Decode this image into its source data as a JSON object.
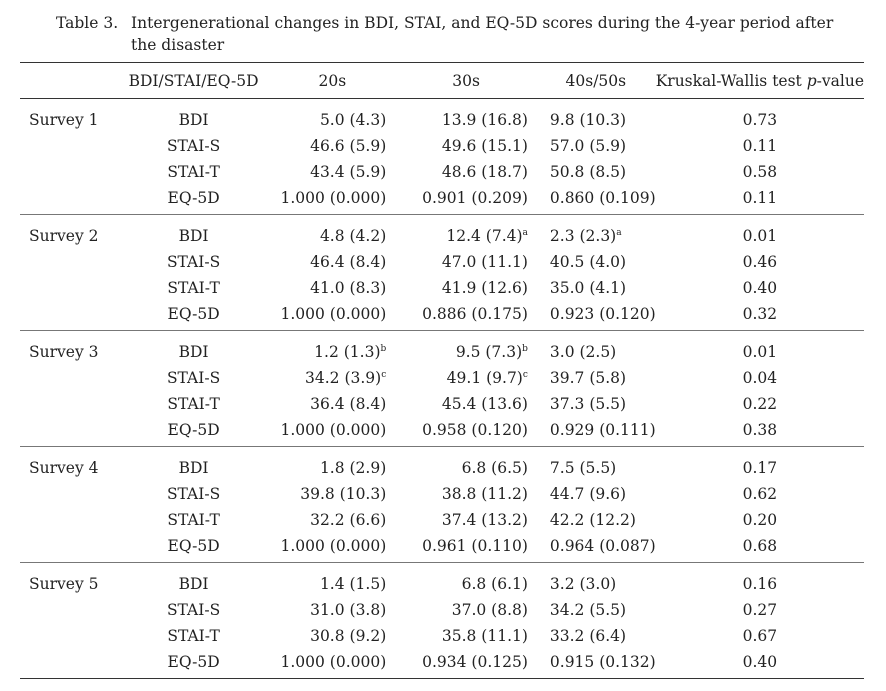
{
  "caption": {
    "label": "Table 3.",
    "text": "Intergenerational changes in BDI, STAI, and EQ-5D scores during the 4-year period after the disaster"
  },
  "header": {
    "survey": "",
    "measure": "BDI/STAI/EQ-5D",
    "col_20s": "20s",
    "col_30s": "30s",
    "col_40s": "40s/50s",
    "kw_prefix": "Kruskal-Wallis test ",
    "kw_p": "p",
    "kw_suffix": "-value"
  },
  "surveys": [
    {
      "name": "Survey 1",
      "rows": [
        {
          "measure": "BDI",
          "v20": "5.0 (4.3)",
          "s20": "",
          "v30": "13.9 (16.8)",
          "s30": "",
          "v40": "9.8 (10.3)",
          "s40": "",
          "p": "0.73"
        },
        {
          "measure": "STAI-S",
          "v20": "46.6 (5.9)",
          "s20": "",
          "v30": "49.6 (15.1)",
          "s30": "",
          "v40": "57.0 (5.9)",
          "s40": "",
          "p": "0.11"
        },
        {
          "measure": "STAI-T",
          "v20": "43.4 (5.9)",
          "s20": "",
          "v30": "48.6 (18.7)",
          "s30": "",
          "v40": "50.8 (8.5)",
          "s40": "",
          "p": "0.58"
        },
        {
          "measure": "EQ-5D",
          "v20": "1.000 (0.000)",
          "s20": "",
          "v30": "0.901 (0.209)",
          "s30": "",
          "v40": "0.860 (0.109)",
          "s40": "",
          "p": "0.11"
        }
      ]
    },
    {
      "name": "Survey 2",
      "rows": [
        {
          "measure": "BDI",
          "v20": "4.8 (4.2)",
          "s20": "",
          "v30": "12.4 (7.4)",
          "s30": "a",
          "v40": "2.3 (2.3)",
          "s40": "a",
          "p": "0.01"
        },
        {
          "measure": "STAI-S",
          "v20": "46.4 (8.4)",
          "s20": "",
          "v30": "47.0 (11.1)",
          "s30": "",
          "v40": "40.5 (4.0)",
          "s40": "",
          "p": "0.46"
        },
        {
          "measure": "STAI-T",
          "v20": "41.0 (8.3)",
          "s20": "",
          "v30": "41.9 (12.6)",
          "s30": "",
          "v40": "35.0 (4.1)",
          "s40": "",
          "p": "0.40"
        },
        {
          "measure": "EQ-5D",
          "v20": "1.000 (0.000)",
          "s20": "",
          "v30": "0.886 (0.175)",
          "s30": "",
          "v40": "0.923 (0.120)",
          "s40": "",
          "p": "0.32"
        }
      ]
    },
    {
      "name": "Survey 3",
      "rows": [
        {
          "measure": "BDI",
          "v20": "1.2 (1.3)",
          "s20": "b",
          "v30": "9.5 (7.3)",
          "s30": "b",
          "v40": "3.0 (2.5)",
          "s40": "",
          "p": "0.01"
        },
        {
          "measure": "STAI-S",
          "v20": "34.2 (3.9)",
          "s20": "c",
          "v30": "49.1 (9.7)",
          "s30": "c",
          "v40": "39.7 (5.8)",
          "s40": "",
          "p": "0.04"
        },
        {
          "measure": "STAI-T",
          "v20": "36.4 (8.4)",
          "s20": "",
          "v30": "45.4 (13.6)",
          "s30": "",
          "v40": "37.3 (5.5)",
          "s40": "",
          "p": "0.22"
        },
        {
          "measure": "EQ-5D",
          "v20": "1.000 (0.000)",
          "s20": "",
          "v30": "0.958 (0.120)",
          "s30": "",
          "v40": "0.929 (0.111)",
          "s40": "",
          "p": "0.38"
        }
      ]
    },
    {
      "name": "Survey 4",
      "rows": [
        {
          "measure": "BDI",
          "v20": "1.8 (2.9)",
          "s20": "",
          "v30": "6.8 (6.5)",
          "s30": "",
          "v40": "7.5 (5.5)",
          "s40": "",
          "p": "0.17"
        },
        {
          "measure": "STAI-S",
          "v20": "39.8 (10.3)",
          "s20": "",
          "v30": "38.8 (11.2)",
          "s30": "",
          "v40": "44.7 (9.6)",
          "s40": "",
          "p": "0.62"
        },
        {
          "measure": "STAI-T",
          "v20": "32.2 (6.6)",
          "s20": "",
          "v30": "37.4 (13.2)",
          "s30": "",
          "v40": "42.2 (12.2)",
          "s40": "",
          "p": "0.20"
        },
        {
          "measure": "EQ-5D",
          "v20": "1.000 (0.000)",
          "s20": "",
          "v30": "0.961 (0.110)",
          "s30": "",
          "v40": "0.964 (0.087)",
          "s40": "",
          "p": "0.68"
        }
      ]
    },
    {
      "name": "Survey 5",
      "rows": [
        {
          "measure": "BDI",
          "v20": "1.4 (1.5)",
          "s20": "",
          "v30": "6.8 (6.1)",
          "s30": "",
          "v40": "3.2 (3.0)",
          "s40": "",
          "p": "0.16"
        },
        {
          "measure": "STAI-S",
          "v20": "31.0 (3.8)",
          "s20": "",
          "v30": "37.0 (8.8)",
          "s30": "",
          "v40": "34.2 (5.5)",
          "s40": "",
          "p": "0.27"
        },
        {
          "measure": "STAI-T",
          "v20": "30.8 (9.2)",
          "s20": "",
          "v30": "35.8 (11.1)",
          "s30": "",
          "v40": "33.2 (6.4)",
          "s40": "",
          "p": "0.67"
        },
        {
          "measure": "EQ-5D",
          "v20": "1.000 (0.000)",
          "s20": "",
          "v30": "0.934 (0.125)",
          "s30": "",
          "v40": "0.915 (0.132)",
          "s40": "",
          "p": "0.40"
        }
      ]
    }
  ]
}
